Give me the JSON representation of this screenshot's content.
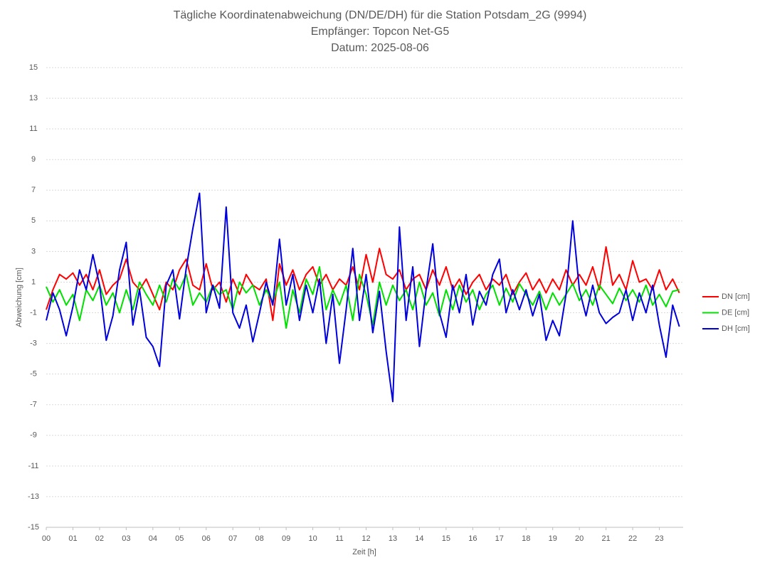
{
  "chart_data": {
    "type": "line",
    "title": "Tägliche Koordinatenabweichung (DN/DE/DH) für die Station Potsdam_2G (9994)",
    "subtitle": "Empfänger: Topcon Net-G5",
    "date_line": "Datum: 2025-08-06",
    "x_label": "Zeit [h]",
    "y_label": "Abweichung [cm]",
    "grid": true,
    "legend": "right",
    "xlim": [
      0,
      24
    ],
    "ylim": [
      -15,
      15
    ],
    "yticks": [
      -15,
      -13,
      -11,
      -9,
      -7,
      -5,
      -3,
      -1,
      1,
      3,
      5,
      7,
      9,
      11,
      13,
      15
    ],
    "xticks": [
      {
        "value": 0,
        "label": "00"
      },
      {
        "value": 1,
        "label": "01"
      },
      {
        "value": 2,
        "label": "02"
      },
      {
        "value": 3,
        "label": "03"
      },
      {
        "value": 4,
        "label": "04"
      },
      {
        "value": 5,
        "label": "05"
      },
      {
        "value": 6,
        "label": "06"
      },
      {
        "value": 7,
        "label": "07"
      },
      {
        "value": 8,
        "label": "08"
      },
      {
        "value": 9,
        "label": "09"
      },
      10,
      11,
      12,
      13,
      14,
      15,
      16,
      17,
      18,
      19,
      20,
      21,
      22,
      23
    ],
    "x": [
      0,
      0.25,
      0.5,
      0.75,
      1,
      1.25,
      1.5,
      1.75,
      2,
      2.25,
      2.5,
      2.75,
      3,
      3.25,
      3.5,
      3.75,
      4,
      4.25,
      4.5,
      4.75,
      5,
      5.25,
      5.5,
      5.75,
      6,
      6.25,
      6.5,
      6.75,
      7,
      7.25,
      7.5,
      7.75,
      8,
      8.25,
      8.5,
      8.75,
      9,
      9.25,
      9.5,
      9.75,
      10,
      10.25,
      10.5,
      10.75,
      11,
      11.25,
      11.5,
      11.75,
      12,
      12.25,
      12.5,
      12.75,
      13,
      13.25,
      13.5,
      13.75,
      14,
      14.25,
      14.5,
      14.75,
      15,
      15.25,
      15.5,
      15.75,
      16,
      16.25,
      16.5,
      16.75,
      17,
      17.25,
      17.5,
      17.75,
      18,
      18.25,
      18.5,
      18.75,
      19,
      19.25,
      19.5,
      19.75,
      20,
      20.25,
      20.5,
      20.75,
      21,
      21.25,
      21.5,
      21.75,
      22,
      22.25,
      22.5,
      22.75,
      23,
      23.25,
      23.5,
      23.75
    ],
    "series": [
      {
        "name": "DN [cm]",
        "color": "#ff0000",
        "values": [
          -0.8,
          0.5,
          1.5,
          1.2,
          1.6,
          0.8,
          1.5,
          0.5,
          1.8,
          0.2,
          0.8,
          1.2,
          2.5,
          1.0,
          0.5,
          1.2,
          0.2,
          -0.8,
          1.0,
          0.5,
          1.8,
          2.5,
          0.8,
          0.5,
          2.2,
          0.5,
          1.0,
          -0.3,
          1.2,
          0.2,
          1.5,
          0.8,
          0.5,
          1.2,
          -1.5,
          2.2,
          0.8,
          1.8,
          0.5,
          1.5,
          2.0,
          0.8,
          1.5,
          0.5,
          1.2,
          0.8,
          2.0,
          0.5,
          2.8,
          1.0,
          3.2,
          1.5,
          1.2,
          1.8,
          0.5,
          1.2,
          1.5,
          0.5,
          1.8,
          0.8,
          2.0,
          0.5,
          1.2,
          0.2,
          1.0,
          1.5,
          0.5,
          1.2,
          0.8,
          1.5,
          0.2,
          1.0,
          1.6,
          0.5,
          1.2,
          0.3,
          1.2,
          0.5,
          1.8,
          0.8,
          1.5,
          0.8,
          2.0,
          0.5,
          3.3,
          0.8,
          1.5,
          0.5,
          2.4,
          1.0,
          1.2,
          0.5,
          1.8,
          0.5,
          1.2,
          0.3
        ]
      },
      {
        "name": "DE [cm]",
        "color": "#00e000",
        "values": [
          0.7,
          -0.3,
          0.5,
          -0.5,
          0.2,
          -1.5,
          0.5,
          -0.2,
          0.8,
          -0.5,
          0.3,
          -1.0,
          0.5,
          -0.8,
          1.0,
          0.2,
          -0.5,
          0.8,
          -0.3,
          1.2,
          0.5,
          1.5,
          -0.5,
          0.3,
          -0.3,
          0.8,
          0.2,
          0.5,
          -0.8,
          1.0,
          0.3,
          0.8,
          -0.5,
          0.5,
          -0.3,
          1.0,
          -2.0,
          0.5,
          -1.0,
          1.2,
          0.2,
          2.0,
          -0.8,
          0.5,
          -0.5,
          0.8,
          -1.5,
          1.5,
          0.2,
          -1.8,
          1.0,
          -0.5,
          0.8,
          -0.2,
          0.5,
          -0.8,
          1.0,
          -0.5,
          0.3,
          -1.2,
          0.5,
          -0.8,
          0.8,
          -0.3,
          0.5,
          -0.8,
          0.2,
          0.8,
          -0.5,
          0.6,
          -0.3,
          0.9,
          0.2,
          -0.5,
          0.4,
          -0.8,
          0.3,
          -0.5,
          0.2,
          0.9,
          -0.2,
          0.5,
          -0.5,
          0.8,
          0.2,
          -0.4,
          0.6,
          -0.2,
          0.5,
          -0.3,
          0.8,
          -0.5,
          0.2,
          -0.6,
          0.4,
          0.5
        ]
      },
      {
        "name": "DH [cm]",
        "color": "#0000dd",
        "values": [
          -1.5,
          0.3,
          -0.8,
          -2.5,
          -0.6,
          1.8,
          0.5,
          2.8,
          0.8,
          -2.8,
          -1.2,
          1.8,
          3.6,
          -1.8,
          0.5,
          -2.6,
          -3.2,
          -4.5,
          0.8,
          1.8,
          -1.4,
          1.9,
          4.5,
          6.8,
          -1.0,
          0.8,
          -0.7,
          5.9,
          -1.0,
          -2.0,
          -0.5,
          -2.9,
          -1.0,
          1.0,
          -0.5,
          3.8,
          -0.5,
          1.5,
          -1.5,
          0.8,
          -1.0,
          1.2,
          -3.0,
          0.2,
          -4.3,
          -0.8,
          3.2,
          -1.5,
          1.5,
          -2.3,
          0.4,
          -3.5,
          -6.8,
          4.6,
          -1.5,
          2.0,
          -3.2,
          0.5,
          3.5,
          -1.0,
          -2.6,
          0.8,
          -1.0,
          1.5,
          -1.8,
          0.4,
          -0.5,
          1.5,
          2.5,
          -1.0,
          0.5,
          -0.8,
          0.5,
          -1.2,
          0.2,
          -2.8,
          -1.5,
          -2.5,
          0.2,
          5.0,
          0.5,
          -1.2,
          0.8,
          -1.0,
          -1.7,
          -1.3,
          -1.0,
          0.5,
          -1.5,
          0.3,
          -1.0,
          0.8,
          -1.8,
          -3.9,
          -0.5,
          -1.9
        ]
      }
    ]
  }
}
